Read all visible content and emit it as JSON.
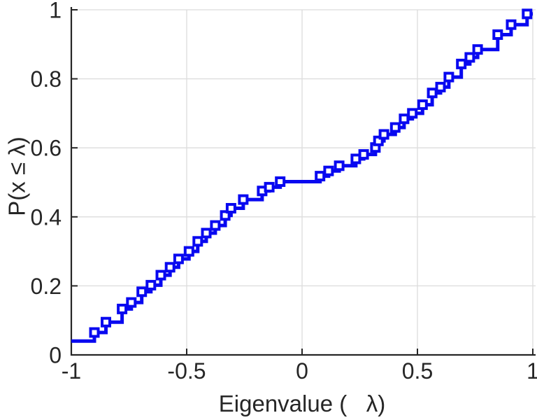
{
  "figure": {
    "background": "#ffffff",
    "text_color": "#262626",
    "spine_color": "#262626",
    "grid_color": "#dcdcdc"
  },
  "chart_data": {
    "type": "line",
    "subtype": "empirical-cdf-stairs",
    "title": "",
    "xlabel": "Eigenvalue (   λ)",
    "ylabel": "P(x ≤ λ)",
    "xlim": [
      -1,
      1
    ],
    "ylim": [
      0,
      1
    ],
    "x_ticks": [
      -1,
      -0.5,
      0,
      0.5,
      1
    ],
    "x_tick_labels": [
      "-1",
      "-0.5",
      "0",
      "0.5",
      "1"
    ],
    "y_ticks": [
      0,
      0.2,
      0.4,
      0.6,
      0.8,
      1
    ],
    "y_tick_labels": [
      "0",
      "0.2",
      "0.4",
      "0.6",
      "0.8",
      "1"
    ],
    "grid": true,
    "legend_position": "none",
    "series": [
      {
        "name": "eigenvalue-ecdf",
        "color": "#0808f0",
        "marker": "open-square",
        "marker_fill": "#ffffff",
        "line_width": 5,
        "start": [
          -1,
          0.04
        ],
        "end_x": 1,
        "points": [
          [
            -0.9,
            0.065
          ],
          [
            -0.85,
            0.095
          ],
          [
            -0.78,
            0.133
          ],
          [
            -0.74,
            0.152
          ],
          [
            -0.695,
            0.183
          ],
          [
            -0.655,
            0.202
          ],
          [
            -0.612,
            0.231
          ],
          [
            -0.572,
            0.254
          ],
          [
            -0.535,
            0.278
          ],
          [
            -0.49,
            0.3
          ],
          [
            -0.452,
            0.329
          ],
          [
            -0.415,
            0.353
          ],
          [
            -0.376,
            0.375
          ],
          [
            -0.333,
            0.404
          ],
          [
            -0.308,
            0.425
          ],
          [
            -0.255,
            0.45
          ],
          [
            -0.173,
            0.475
          ],
          [
            -0.142,
            0.486
          ],
          [
            -0.095,
            0.502
          ],
          [
            0.078,
            0.518
          ],
          [
            0.115,
            0.533
          ],
          [
            0.161,
            0.548
          ],
          [
            0.233,
            0.568
          ],
          [
            0.267,
            0.581
          ],
          [
            0.318,
            0.601
          ],
          [
            0.331,
            0.62
          ],
          [
            0.355,
            0.639
          ],
          [
            0.404,
            0.659
          ],
          [
            0.442,
            0.684
          ],
          [
            0.478,
            0.7
          ],
          [
            0.522,
            0.725
          ],
          [
            0.564,
            0.759
          ],
          [
            0.6,
            0.776
          ],
          [
            0.636,
            0.805
          ],
          [
            0.69,
            0.843
          ],
          [
            0.727,
            0.862
          ],
          [
            0.761,
            0.885
          ],
          [
            0.848,
            0.928
          ],
          [
            0.906,
            0.957
          ],
          [
            0.975,
            0.988
          ]
        ]
      }
    ]
  }
}
